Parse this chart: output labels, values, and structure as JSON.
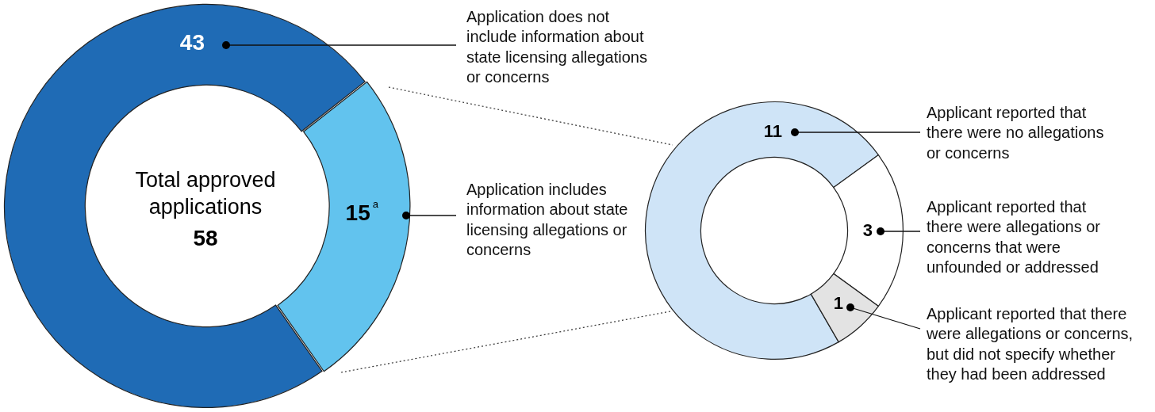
{
  "chart_data": [
    {
      "type": "donut",
      "title": "Total approved applications",
      "annotations": [
        "58"
      ],
      "categories": [
        "Application does not include information about state licensing allegations or concerns",
        "Application includes information about state licensing allegations or concerns"
      ],
      "values": [
        43,
        15
      ],
      "colors": [
        "#1f6bb5",
        "#62c3ee"
      ],
      "value_labels": [
        "43",
        "15$^{a}$"
      ]
    },
    {
      "type": "donut",
      "categories": [
        "Applicant reported that there were no allegations or concerns",
        "Applicant reported that there were allegations or concerns that were unfounded or addressed",
        "Applicant reported that there were allegations or concerns, but did not specify whether they had been addressed"
      ],
      "values": [
        11,
        3,
        1
      ],
      "colors": [
        "#cfe4f7",
        "#ffffff",
        "#e3e3e3"
      ],
      "value_labels": [
        "11",
        "3",
        "1"
      ]
    }
  ]
}
